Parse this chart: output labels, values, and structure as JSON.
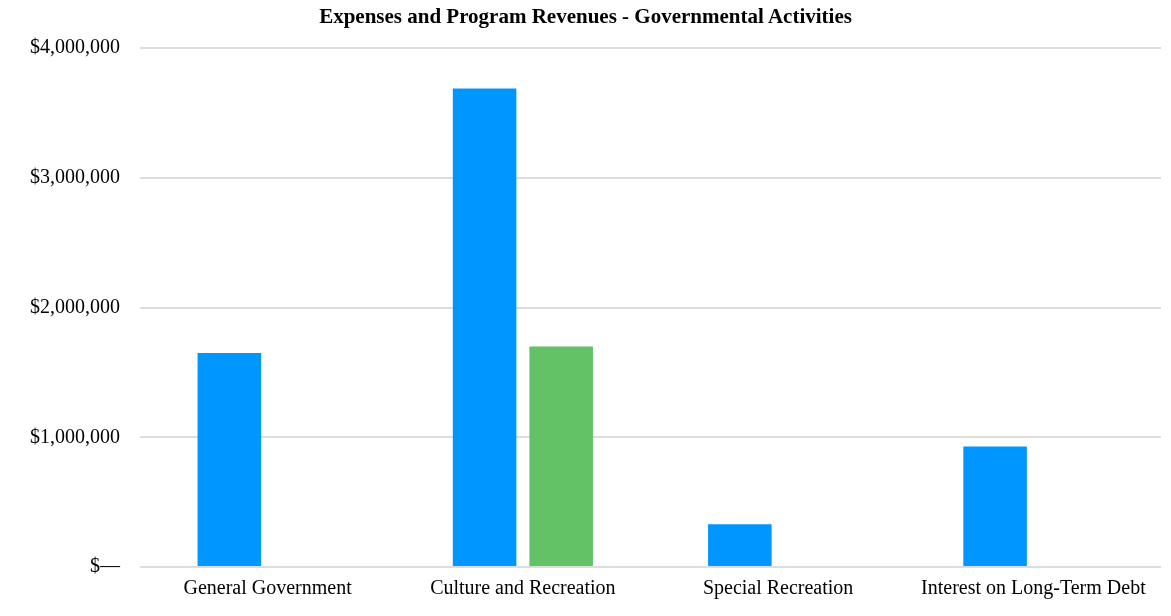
{
  "chart_data": {
    "type": "bar",
    "title": "Expenses and Program Revenues - Governmental Activities",
    "categories": [
      "General Government",
      "Culture and Recreation",
      "Special Recreation",
      "Interest on Long-Term Debt"
    ],
    "series": [
      {
        "color": "#0096ff",
        "values": [
          1650000,
          3690000,
          330000,
          930000
        ]
      },
      {
        "color": "#63c266",
        "values": [
          null,
          1700000,
          null,
          null
        ]
      }
    ],
    "ylim": [
      0,
      4000000
    ],
    "yticks": [
      {
        "value": 0,
        "label": "$—"
      },
      {
        "value": 1000000,
        "label": "$1,000,000"
      },
      {
        "value": 2000000,
        "label": "$2,000,000"
      },
      {
        "value": 3000000,
        "label": "$3,000,000"
      },
      {
        "value": 4000000,
        "label": "$4,000,000"
      }
    ],
    "grid": "y",
    "legend": false
  }
}
